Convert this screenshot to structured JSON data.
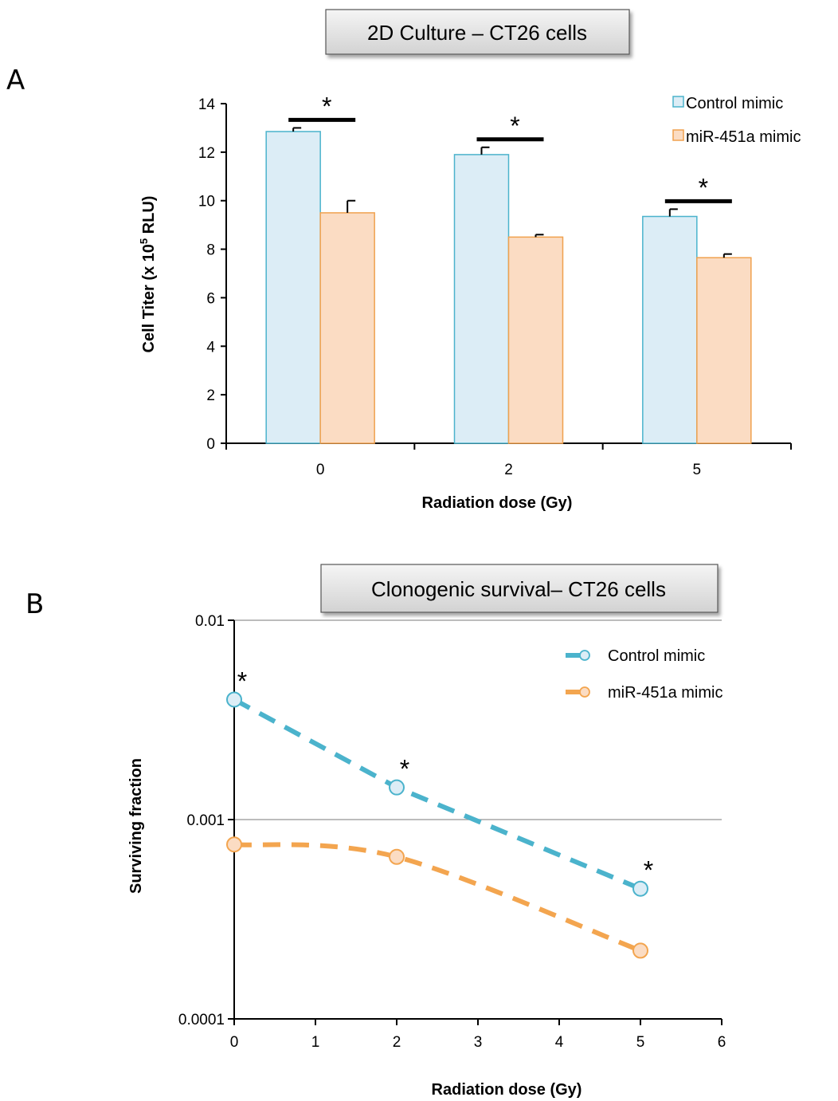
{
  "panels": {
    "a": {
      "letter": "A",
      "title": "2D Culture – CT26 cells",
      "ylabel_main": "Cell Titer (x 10",
      "ylabel_sup": "5",
      "ylabel_end": " RLU)"
    },
    "b": {
      "letter": "B",
      "title": "Clonogenic survival– CT26 cells"
    }
  },
  "colors": {
    "control_fill": "#dcedf6",
    "control_stroke": "#4bb3cc",
    "mir_fill": "#fbdcc3",
    "mir_stroke": "#f0a14e",
    "control_line": "#4bb3cc",
    "mir_line": "#f3a54f"
  },
  "chart_data": [
    {
      "type": "bar",
      "title": "2D Culture – CT26 cells",
      "xlabel": "Radiation dose (Gy)",
      "ylabel": "Cell Titer (x 10^5 RLU)",
      "categories": [
        "0",
        "2",
        "5"
      ],
      "ylim": [
        0,
        14
      ],
      "yticks": [
        "0",
        "2",
        "4",
        "6",
        "8",
        "10",
        "12",
        "14"
      ],
      "series": [
        {
          "name": "Control mimic",
          "values": [
            12.85,
            11.9,
            9.35
          ],
          "errors": [
            0.15,
            0.3,
            0.3
          ]
        },
        {
          "name": "miR-451a mimic",
          "values": [
            9.5,
            8.5,
            7.65
          ],
          "errors": [
            0.5,
            0.1,
            0.15
          ]
        }
      ],
      "significance": [
        "*",
        "*",
        "*"
      ],
      "legend_position": "top-right",
      "grid": false
    },
    {
      "type": "line",
      "title": "Clonogenic survival– CT26 cells",
      "xlabel": "Radiation dose (Gy)",
      "ylabel": "Surviving fraction",
      "yscale": "log",
      "ylim": [
        0.0001,
        0.01
      ],
      "yticks": [
        "0.0001",
        "0.001",
        "0.01"
      ],
      "xlim": [
        0,
        6
      ],
      "xticks": [
        "0",
        "1",
        "2",
        "3",
        "4",
        "5",
        "6"
      ],
      "x": [
        0,
        2,
        5
      ],
      "series": [
        {
          "name": "Control mimic",
          "values": [
            0.004,
            0.00145,
            0.00045
          ],
          "significance": [
            "*",
            "*",
            "*"
          ]
        },
        {
          "name": "miR-451a mimic",
          "values": [
            0.00075,
            0.00065,
            0.00022
          ]
        }
      ],
      "legend_position": "top-right",
      "grid": true
    }
  ]
}
